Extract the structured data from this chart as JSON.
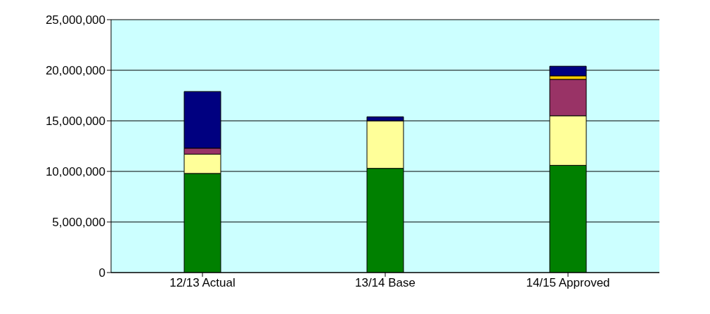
{
  "chart_data": {
    "type": "bar",
    "stacked": true,
    "categories": [
      "12/13 Actual",
      "13/14 Base",
      "14/15 Approved"
    ],
    "series": [
      {
        "color": "#008000",
        "values": [
          9800000,
          10300000,
          10600000
        ]
      },
      {
        "color": "#ffff99",
        "values": [
          1900000,
          4700000,
          4900000
        ]
      },
      {
        "color": "#993366",
        "values": [
          600000,
          0,
          3600000
        ]
      },
      {
        "color": "#ffcc00",
        "values": [
          0,
          0,
          350000
        ]
      },
      {
        "color": "#000080",
        "values": [
          5600000,
          400000,
          950000
        ]
      }
    ],
    "ylim": [
      0,
      25000000
    ],
    "yticks": [
      {
        "value": 0,
        "label": "0"
      },
      {
        "value": 5000000,
        "label": "5,000,000"
      },
      {
        "value": 10000000,
        "label": "10,000,000"
      },
      {
        "value": 15000000,
        "label": "15,000,000"
      },
      {
        "value": 20000000,
        "label": "20,000,000"
      },
      {
        "value": 25000000,
        "label": "25,000,000"
      }
    ],
    "grid": "y",
    "legend": false
  }
}
